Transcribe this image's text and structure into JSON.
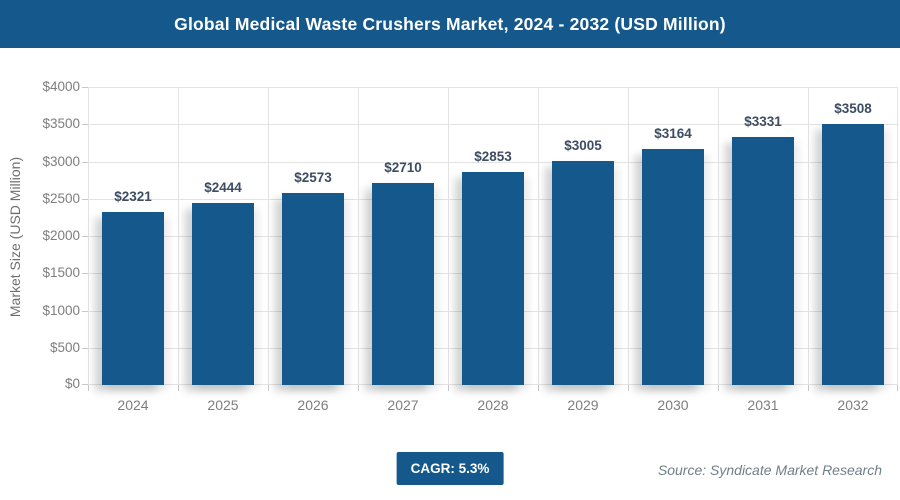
{
  "header": {
    "title": "Global Medical Waste Crushers Market, 2024 - 2032 (USD Million)"
  },
  "chart_data": {
    "type": "bar",
    "title": "Global Medical Waste Crushers Market, 2024 - 2032 (USD Million)",
    "categories": [
      "2024",
      "2025",
      "2026",
      "2027",
      "2028",
      "2029",
      "2030",
      "2031",
      "2032"
    ],
    "values": [
      2321,
      2444,
      2573,
      2710,
      2853,
      3005,
      3164,
      3331,
      3508
    ],
    "value_prefix": "$",
    "xlabel": "",
    "ylabel": "Market Size (USD Million)",
    "ylim": [
      0,
      4000
    ],
    "ytick_step": 500,
    "grid": true,
    "legend": "none",
    "bar_color": "#15588C",
    "value_label_color": "#3d4c63",
    "axis_text_color": "#7e7e7e"
  },
  "footer": {
    "cagr_label": "CAGR: 5.3%",
    "source": "Source: Syndicate Market Research"
  },
  "colors": {
    "brand_blue": "#15588C",
    "gridline": "#e3e3e3"
  }
}
